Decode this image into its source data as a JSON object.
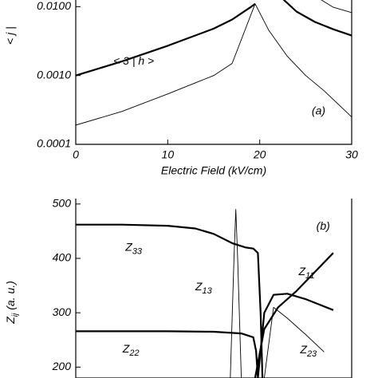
{
  "chart_data": [
    {
      "type": "line",
      "log_y": true,
      "ylabel": "< j |",
      "xlabel": "Electric Field (kV/cm)",
      "xlim": [
        0,
        30
      ],
      "xticks": [
        0,
        10,
        20,
        30
      ],
      "ylim": [
        0.0001,
        0.0125
      ],
      "yticks": [
        0.0001,
        {
          "value": 0.001,
          "label": "0.0010"
        },
        {
          "value": 0.01,
          "label": "0.0100"
        }
      ],
      "annotations": [
        "< 3 | h >",
        "(a)"
      ],
      "series": [
        {
          "color": "#000000",
          "width": 2.2,
          "x": [
            0,
            5,
            10,
            15,
            17,
            19,
            19.5
          ],
          "values": [
            0.001,
            0.0016,
            0.0027,
            0.0048,
            0.0065,
            0.0098,
            0.011
          ]
        },
        {
          "color": "#000000",
          "width": 2.2,
          "x": [
            22.5,
            24,
            26,
            28,
            30
          ],
          "values": [
            0.013,
            0.0085,
            0.006,
            0.0047,
            0.0038
          ]
        },
        {
          "color": "#000000",
          "width": 0.9,
          "x": [
            0,
            5,
            10,
            15,
            17,
            19.5,
            21,
            23,
            25,
            27,
            30
          ],
          "values": [
            0.00019,
            0.0003,
            0.00054,
            0.001,
            0.0015,
            0.011,
            0.0045,
            0.0019,
            0.001,
            0.0006,
            0.00025
          ]
        },
        {
          "color": "#000000",
          "width": 0.9,
          "x": [
            26.5,
            28,
            30
          ],
          "values": [
            0.013,
            0.0098,
            0.0082
          ]
        }
      ]
    },
    {
      "type": "line",
      "log_y": false,
      "ylabel_main": "Z",
      "ylabel_sub": "ij",
      "ylabel_unit": "(a. u.)",
      "xlim": [
        0,
        30
      ],
      "ylim": [
        180,
        510
      ],
      "yticks": [
        200,
        300,
        400,
        500
      ],
      "annotations": [
        {
          "text": "Z",
          "sub": "33"
        },
        {
          "text": "Z",
          "sub": "13"
        },
        {
          "text": "Z",
          "sub": "22"
        },
        {
          "text": "Z",
          "sub": "11"
        },
        {
          "text": "Z",
          "sub": "23"
        },
        {
          "text": "(b)"
        }
      ],
      "series": [
        {
          "color": "#000000",
          "width": 2.2,
          "x": [
            0,
            5,
            10,
            13,
            15,
            17,
            18.5,
            19.3,
            19.8,
            20.1,
            20.3
          ],
          "values": [
            462,
            462,
            460,
            455,
            445,
            428,
            420,
            418,
            410,
            300,
            180
          ]
        },
        {
          "color": "#000000",
          "width": 2.2,
          "x": [
            0,
            10,
            15,
            18,
            19.3,
            19.6,
            19.8
          ],
          "values": [
            266,
            266,
            265,
            262,
            255,
            230,
            180
          ]
        },
        {
          "color": "#000000",
          "width": 0.9,
          "x": [
            16.8,
            17.2,
            17.4,
            17.6,
            18.0
          ],
          "values": [
            180,
            400,
            490,
            400,
            180
          ]
        },
        {
          "color": "#000000",
          "width": 2.2,
          "x": [
            19.5,
            20.5,
            22,
            24,
            26,
            28
          ],
          "values": [
            180,
            270,
            310,
            340,
            375,
            410
          ]
        },
        {
          "color": "#000000",
          "width": 0.9,
          "x": [
            20.5,
            21.5,
            23,
            25,
            27
          ],
          "values": [
            180,
            310,
            290,
            260,
            228
          ]
        },
        {
          "color": "#000000",
          "width": 2.2,
          "x": [
            19.8,
            20.5,
            21.5,
            23,
            25,
            28
          ],
          "values": [
            180,
            300,
            333,
            335,
            325,
            305
          ]
        }
      ]
    }
  ]
}
